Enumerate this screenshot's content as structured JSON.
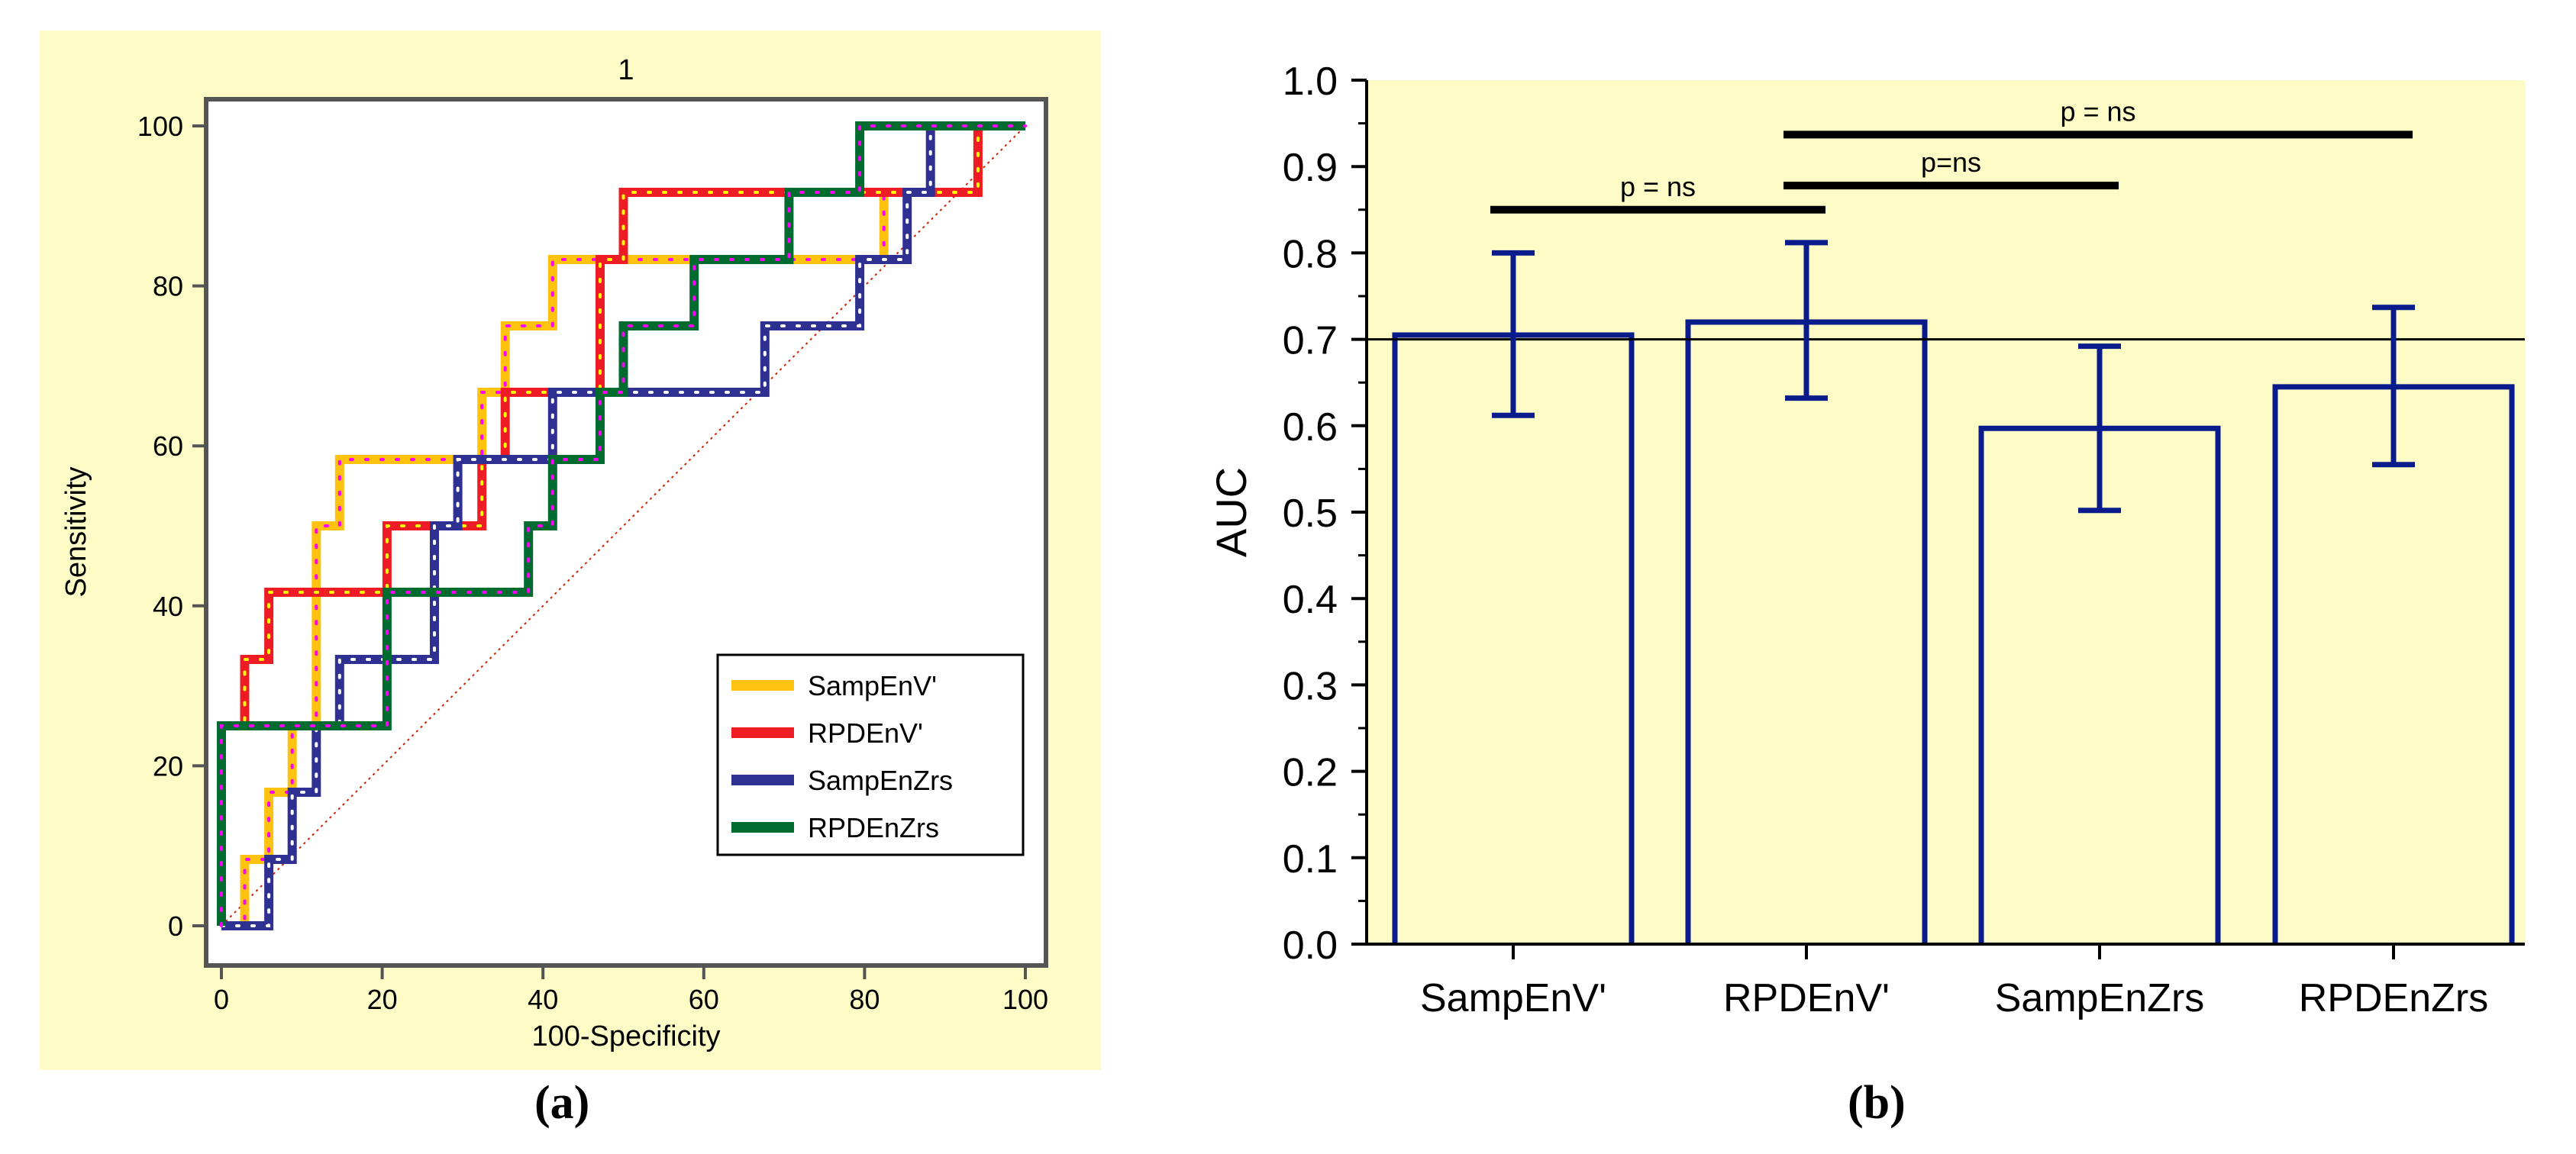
{
  "captions": {
    "a": "(a)",
    "b": "(b)"
  },
  "colors": {
    "panel_bg": "#fdfbc6",
    "plot_bg": "#ffffff",
    "frame": "#555555",
    "SampEnV'": "#ffc20e",
    "RPDEnV'": "#ee1c24",
    "SampEnZrs": "#2e3192",
    "RPDEnZrs": "#006b2e",
    "diagonal": "#cc2200",
    "bar_edge": "#0a1c8c",
    "ref_line": "#000000",
    "dot_magenta": "#ff00ff",
    "dot_yellow": "#ffff00"
  },
  "chart_data": [
    {
      "type": "line",
      "title": "1",
      "xlabel": "100-Specificity",
      "ylabel": "Sensitivity",
      "xlim": [
        0,
        100
      ],
      "ylim": [
        0,
        100
      ],
      "xticks": [
        0,
        20,
        40,
        60,
        80,
        100
      ],
      "yticks": [
        0,
        20,
        40,
        60,
        80,
        100
      ],
      "legend_position": "lower-right",
      "series": [
        {
          "name": "SampEnV'",
          "points": [
            [
              0,
              0
            ],
            [
              2.9,
              0
            ],
            [
              2.9,
              8.3
            ],
            [
              5.9,
              8.3
            ],
            [
              5.9,
              16.7
            ],
            [
              8.8,
              16.7
            ],
            [
              8.8,
              25
            ],
            [
              11.8,
              25
            ],
            [
              11.8,
              41.7
            ],
            [
              11.8,
              50
            ],
            [
              14.7,
              50
            ],
            [
              14.7,
              58.3
            ],
            [
              32.4,
              58.3
            ],
            [
              32.4,
              66.7
            ],
            [
              35.3,
              66.7
            ],
            [
              35.3,
              75
            ],
            [
              41.2,
              75
            ],
            [
              41.2,
              83.3
            ],
            [
              82.4,
              83.3
            ],
            [
              82.4,
              91.7
            ],
            [
              94.1,
              91.7
            ],
            [
              94.1,
              100
            ],
            [
              100,
              100
            ]
          ]
        },
        {
          "name": "RPDEnV'",
          "points": [
            [
              0,
              0
            ],
            [
              0,
              25
            ],
            [
              2.9,
              25
            ],
            [
              2.9,
              33.3
            ],
            [
              5.9,
              33.3
            ],
            [
              5.9,
              41.7
            ],
            [
              20.6,
              41.7
            ],
            [
              20.6,
              50
            ],
            [
              32.4,
              50
            ],
            [
              32.4,
              58.3
            ],
            [
              35.3,
              58.3
            ],
            [
              35.3,
              66.7
            ],
            [
              47.1,
              66.7
            ],
            [
              47.1,
              83.3
            ],
            [
              50,
              83.3
            ],
            [
              50,
              91.7
            ],
            [
              94.1,
              91.7
            ],
            [
              94.1,
              100
            ],
            [
              100,
              100
            ]
          ]
        },
        {
          "name": "SampEnZrs",
          "points": [
            [
              0,
              0
            ],
            [
              5.9,
              0
            ],
            [
              5.9,
              8.3
            ],
            [
              8.8,
              8.3
            ],
            [
              8.8,
              16.7
            ],
            [
              11.8,
              16.7
            ],
            [
              11.8,
              25
            ],
            [
              14.7,
              25
            ],
            [
              14.7,
              33.3
            ],
            [
              26.5,
              33.3
            ],
            [
              26.5,
              50
            ],
            [
              29.4,
              50
            ],
            [
              29.4,
              58.3
            ],
            [
              41.2,
              58.3
            ],
            [
              41.2,
              66.7
            ],
            [
              67.6,
              66.7
            ],
            [
              67.6,
              75
            ],
            [
              79.4,
              75
            ],
            [
              79.4,
              83.3
            ],
            [
              85.3,
              83.3
            ],
            [
              85.3,
              91.7
            ],
            [
              88.2,
              91.7
            ],
            [
              88.2,
              100
            ],
            [
              100,
              100
            ]
          ]
        },
        {
          "name": "RPDEnZrs",
          "points": [
            [
              0,
              0
            ],
            [
              0,
              25
            ],
            [
              20.6,
              25
            ],
            [
              20.6,
              41.7
            ],
            [
              38.2,
              41.7
            ],
            [
              38.2,
              50
            ],
            [
              41.2,
              50
            ],
            [
              41.2,
              58.3
            ],
            [
              47.1,
              58.3
            ],
            [
              47.1,
              66.7
            ],
            [
              50,
              66.7
            ],
            [
              50,
              75
            ],
            [
              58.8,
              75
            ],
            [
              58.8,
              83.3
            ],
            [
              70.6,
              83.3
            ],
            [
              70.6,
              91.7
            ],
            [
              79.4,
              91.7
            ],
            [
              79.4,
              100
            ],
            [
              100,
              100
            ]
          ]
        }
      ],
      "reference_line": [
        [
          0,
          0
        ],
        [
          100,
          100
        ]
      ]
    },
    {
      "type": "bar",
      "categories": [
        "SampEnV'",
        "RPDEnV'",
        "SampEnZrs",
        "RPDEnZrs"
      ],
      "values": [
        0.705,
        0.72,
        0.597,
        0.645
      ],
      "error_low": [
        0.612,
        0.632,
        0.502,
        0.555
      ],
      "error_high": [
        0.8,
        0.812,
        0.692,
        0.737
      ],
      "title": "",
      "xlabel": "",
      "ylabel": "AUC",
      "ylim": [
        0,
        1.0
      ],
      "yticks": [
        "0.0",
        "0.1",
        "0.2",
        "0.3",
        "0.4",
        "0.5",
        "0.6",
        "0.7",
        "0.8",
        "0.9",
        "1.0"
      ],
      "reference_value": 0.7,
      "significance": [
        {
          "from": 0,
          "to": 1,
          "label": "p = ns",
          "level": 0.85
        },
        {
          "from": 1,
          "to": 2,
          "label": "p=ns",
          "level": 0.878
        },
        {
          "from": 1,
          "to": 3,
          "label": "p = ns",
          "level": 0.937
        }
      ]
    }
  ]
}
